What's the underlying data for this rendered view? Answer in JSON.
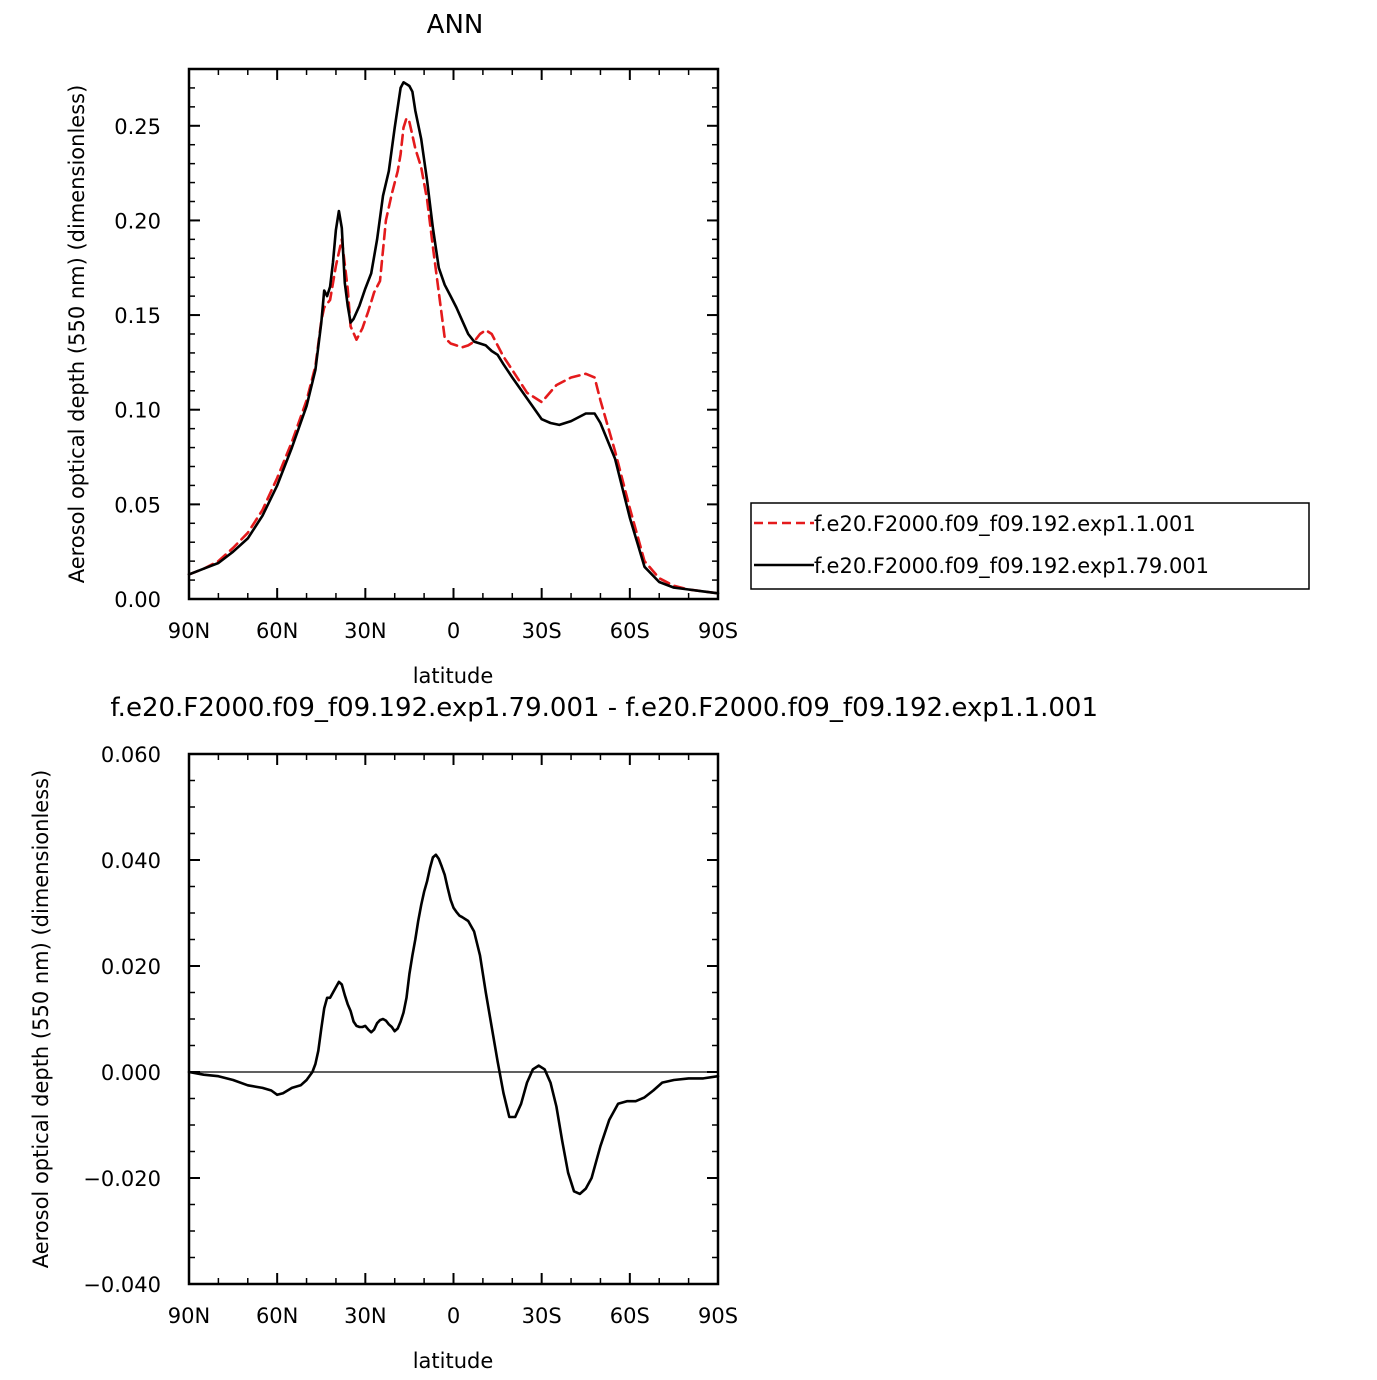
{
  "chart_data": [
    {
      "type": "line",
      "title": "ANN",
      "xlabel": "latitude",
      "ylabel": "Aerosol optical depth (550 nm) (dimensionless)",
      "xlim": [
        90,
        -90
      ],
      "ylim": [
        0.0,
        0.28
      ],
      "x_ticks": [
        90,
        60,
        30,
        0,
        -30,
        -60,
        -90
      ],
      "x_tick_labels": [
        "90N",
        "60N",
        "30N",
        "0",
        "30S",
        "60S",
        "90S"
      ],
      "y_ticks": [
        0.0,
        0.05,
        0.1,
        0.15,
        0.2,
        0.25
      ],
      "y_tick_labels": [
        "0.00",
        "0.05",
        "0.10",
        "0.15",
        "0.20",
        "0.25"
      ],
      "legend_position": "right",
      "series": [
        {
          "name": "f.e20.F2000.f09_f09.192.exp1.1.001",
          "color": "#e41a1c",
          "style": "dashed",
          "x": [
            90,
            85,
            80,
            75,
            70,
            65,
            60,
            55,
            50,
            47,
            45,
            44,
            42,
            40,
            38,
            36,
            35,
            33,
            31,
            29,
            27,
            25,
            23,
            21,
            19,
            18,
            17,
            16,
            15,
            14,
            13,
            11,
            9,
            7,
            5,
            3,
            1,
            -1,
            -3,
            -5,
            -7,
            -9,
            -11,
            -13,
            -15,
            -17,
            -20,
            -25,
            -30,
            -35,
            -40,
            -45,
            -48,
            -50,
            -55,
            -60,
            -65,
            -70,
            -75,
            -80,
            -85,
            -90
          ],
          "y": [
            0.013,
            0.016,
            0.02,
            0.027,
            0.035,
            0.047,
            0.064,
            0.083,
            0.105,
            0.123,
            0.147,
            0.154,
            0.158,
            0.176,
            0.19,
            0.164,
            0.144,
            0.137,
            0.143,
            0.152,
            0.162,
            0.168,
            0.2,
            0.214,
            0.226,
            0.235,
            0.249,
            0.254,
            0.252,
            0.245,
            0.238,
            0.228,
            0.211,
            0.186,
            0.162,
            0.138,
            0.135,
            0.134,
            0.133,
            0.134,
            0.136,
            0.14,
            0.142,
            0.14,
            0.134,
            0.128,
            0.121,
            0.109,
            0.104,
            0.113,
            0.117,
            0.119,
            0.117,
            0.105,
            0.078,
            0.048,
            0.02,
            0.011,
            0.007,
            0.005,
            0.004,
            0.003
          ]
        },
        {
          "name": "f.e20.F2000.f09_f09.192.exp1.79.001",
          "color": "#000000",
          "style": "solid",
          "x": [
            90,
            85,
            80,
            75,
            70,
            65,
            60,
            55,
            50,
            47,
            45,
            44,
            43,
            42,
            41,
            40,
            39,
            38,
            37,
            36,
            35,
            34,
            32,
            30,
            28,
            26,
            24,
            22,
            20,
            18,
            17,
            16,
            15,
            14,
            13,
            11,
            9,
            7,
            5,
            3,
            1,
            -1,
            -3,
            -5,
            -7,
            -9,
            -11,
            -13,
            -15,
            -17,
            -20,
            -25,
            -30,
            -33,
            -36,
            -40,
            -45,
            -48,
            -50,
            -55,
            -60,
            -65,
            -70,
            -75,
            -80,
            -85,
            -90
          ],
          "y": [
            0.013,
            0.016,
            0.019,
            0.025,
            0.032,
            0.044,
            0.06,
            0.08,
            0.102,
            0.121,
            0.146,
            0.163,
            0.16,
            0.165,
            0.178,
            0.195,
            0.205,
            0.196,
            0.167,
            0.155,
            0.146,
            0.148,
            0.155,
            0.164,
            0.172,
            0.19,
            0.213,
            0.226,
            0.249,
            0.27,
            0.273,
            0.272,
            0.271,
            0.268,
            0.258,
            0.243,
            0.221,
            0.196,
            0.175,
            0.166,
            0.16,
            0.154,
            0.147,
            0.14,
            0.136,
            0.135,
            0.134,
            0.131,
            0.129,
            0.124,
            0.117,
            0.106,
            0.095,
            0.093,
            0.092,
            0.094,
            0.098,
            0.098,
            0.093,
            0.074,
            0.043,
            0.017,
            0.009,
            0.006,
            0.005,
            0.004,
            0.003
          ]
        }
      ]
    },
    {
      "type": "line",
      "title": "f.e20.F2000.f09_f09.192.exp1.79.001 - f.e20.F2000.f09_f09.192.exp1.1.001",
      "xlabel": "latitude",
      "ylabel": "Aerosol optical depth (550 nm) (dimensionless)",
      "xlim": [
        90,
        -90
      ],
      "ylim": [
        -0.04,
        0.06
      ],
      "x_ticks": [
        90,
        60,
        30,
        0,
        -30,
        -60,
        -90
      ],
      "x_tick_labels": [
        "90N",
        "60N",
        "30N",
        "0",
        "30S",
        "60S",
        "90S"
      ],
      "y_ticks": [
        -0.04,
        -0.02,
        0.0,
        0.02,
        0.04,
        0.06
      ],
      "y_tick_labels": [
        "−0.040",
        "−0.020",
        "0.000",
        "0.020",
        "0.040",
        "0.060"
      ],
      "series": [
        {
          "color": "#000000",
          "style": "solid",
          "x": [
            90,
            85,
            80,
            75,
            70,
            65,
            62,
            60,
            58,
            55,
            52,
            50,
            48,
            47,
            46,
            45,
            44,
            43,
            42,
            41,
            40,
            39,
            38,
            37,
            36,
            35,
            34,
            33,
            32,
            31,
            30,
            29,
            28,
            27,
            26,
            25,
            24,
            23,
            22,
            21,
            20,
            19,
            18,
            17,
            16,
            15,
            14,
            13,
            12,
            11,
            10,
            9,
            8,
            7,
            6,
            5,
            4,
            3,
            2,
            1,
            0,
            -1,
            -2,
            -3,
            -5,
            -7,
            -9,
            -11,
            -13,
            -15,
            -17,
            -19,
            -21,
            -23,
            -25,
            -27,
            -29,
            -31,
            -33,
            -35,
            -37,
            -39,
            -41,
            -43,
            -45,
            -47,
            -50,
            -53,
            -56,
            -59,
            -62,
            -65,
            -68,
            -71,
            -75,
            -80,
            -85,
            -90
          ],
          "y": [
            0.0,
            -0.0005,
            -0.0008,
            -0.0015,
            -0.0025,
            -0.003,
            -0.0035,
            -0.0043,
            -0.004,
            -0.003,
            -0.0025,
            -0.0015,
            0.0,
            0.0015,
            0.004,
            0.0082,
            0.012,
            0.014,
            0.014,
            0.015,
            0.016,
            0.017,
            0.0165,
            0.0145,
            0.0128,
            0.0115,
            0.0095,
            0.0087,
            0.0085,
            0.0085,
            0.0087,
            0.008,
            0.0075,
            0.008,
            0.0092,
            0.0098,
            0.01,
            0.0097,
            0.009,
            0.0085,
            0.0077,
            0.0082,
            0.0095,
            0.0112,
            0.014,
            0.0185,
            0.022,
            0.025,
            0.0285,
            0.0315,
            0.034,
            0.036,
            0.0385,
            0.0405,
            0.041,
            0.0402,
            0.0388,
            0.0372,
            0.0348,
            0.0325,
            0.031,
            0.0302,
            0.0295,
            0.0292,
            0.0285,
            0.0265,
            0.022,
            0.015,
            0.0085,
            0.002,
            -0.004,
            -0.0085,
            -0.0085,
            -0.006,
            -0.002,
            0.0005,
            0.0012,
            0.0005,
            -0.002,
            -0.0065,
            -0.013,
            -0.019,
            -0.0225,
            -0.023,
            -0.022,
            -0.02,
            -0.014,
            -0.009,
            -0.006,
            -0.0055,
            -0.0055,
            -0.0048,
            -0.0035,
            -0.002,
            -0.0015,
            -0.0012,
            -0.0012,
            -0.0008
          ]
        }
      ]
    }
  ]
}
